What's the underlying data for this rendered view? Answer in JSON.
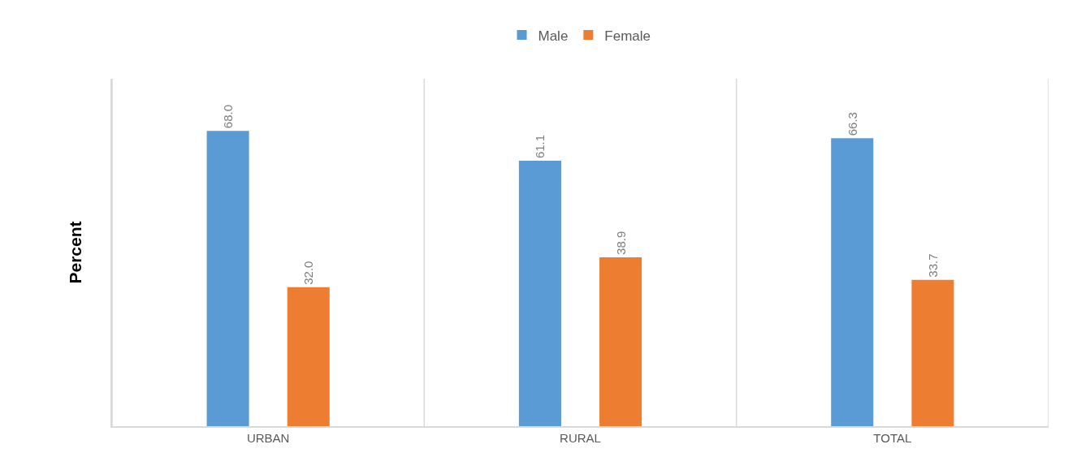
{
  "chart_data": {
    "type": "bar",
    "ylabel": "Percent",
    "categories": [
      "URBAN",
      "RURAL",
      "TOTAL"
    ],
    "series": [
      {
        "name": "Male",
        "color": "#5b9bd5",
        "values": [
          68.0,
          61.1,
          66.3
        ],
        "value_labels": [
          "68.0",
          "61.1",
          "66.3"
        ]
      },
      {
        "name": "Female",
        "color": "#ed7d31",
        "values": [
          32.0,
          38.9,
          33.7
        ],
        "value_labels": [
          "32.0",
          "38.9",
          "33.7"
        ]
      }
    ],
    "ylim": [
      0,
      80
    ],
    "tick_labels": "x",
    "grid": "x",
    "legend": "top"
  }
}
